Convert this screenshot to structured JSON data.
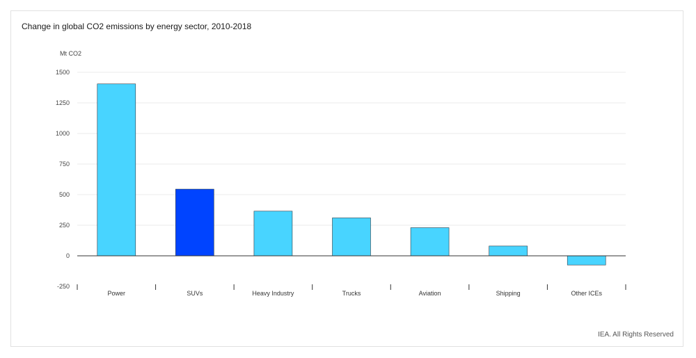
{
  "chart_data": {
    "type": "bar",
    "title": "Change in global CO2 emissions by energy sector, 2010-2018",
    "ylabel": "Mt CO2",
    "xlabel": "",
    "ylim": [
      -250,
      1500
    ],
    "yticks": [
      1500,
      1250,
      1000,
      750,
      500,
      250,
      0,
      -250
    ],
    "categories": [
      "Power",
      "SUVs",
      "Heavy Industry",
      "Trucks",
      "Aviation",
      "Shipping",
      "Other ICEs"
    ],
    "values": [
      1405,
      545,
      365,
      310,
      230,
      80,
      -75
    ],
    "colors": [
      "#48d4ff",
      "#0044ff",
      "#48d4ff",
      "#48d4ff",
      "#48d4ff",
      "#48d4ff",
      "#48d4ff"
    ],
    "grid": true,
    "legend": "none"
  },
  "footer": {
    "credit": "IEA. All Rights Reserved"
  }
}
